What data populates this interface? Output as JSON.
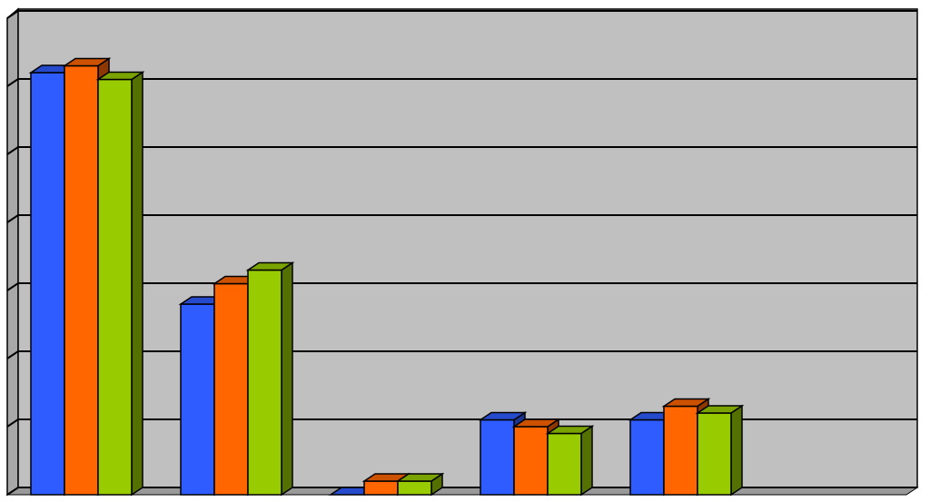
{
  "chart_data": {
    "type": "bar3d",
    "categories": [
      null,
      null,
      null,
      null,
      null
    ],
    "series": [
      {
        "color": "#2f5cff",
        "values": [
          6.2,
          2.8,
          0.0,
          1.1,
          1.1
        ]
      },
      {
        "color": "#ff6600",
        "values": [
          6.3,
          3.1,
          0.2,
          1.0,
          1.3
        ]
      },
      {
        "color": "#99cc00",
        "values": [
          6.1,
          3.3,
          0.2,
          0.9,
          1.2
        ]
      }
    ],
    "ylim": [
      0,
      7
    ],
    "yticks": [
      0,
      1,
      2,
      3,
      4,
      5,
      6,
      7
    ],
    "grid": true
  }
}
